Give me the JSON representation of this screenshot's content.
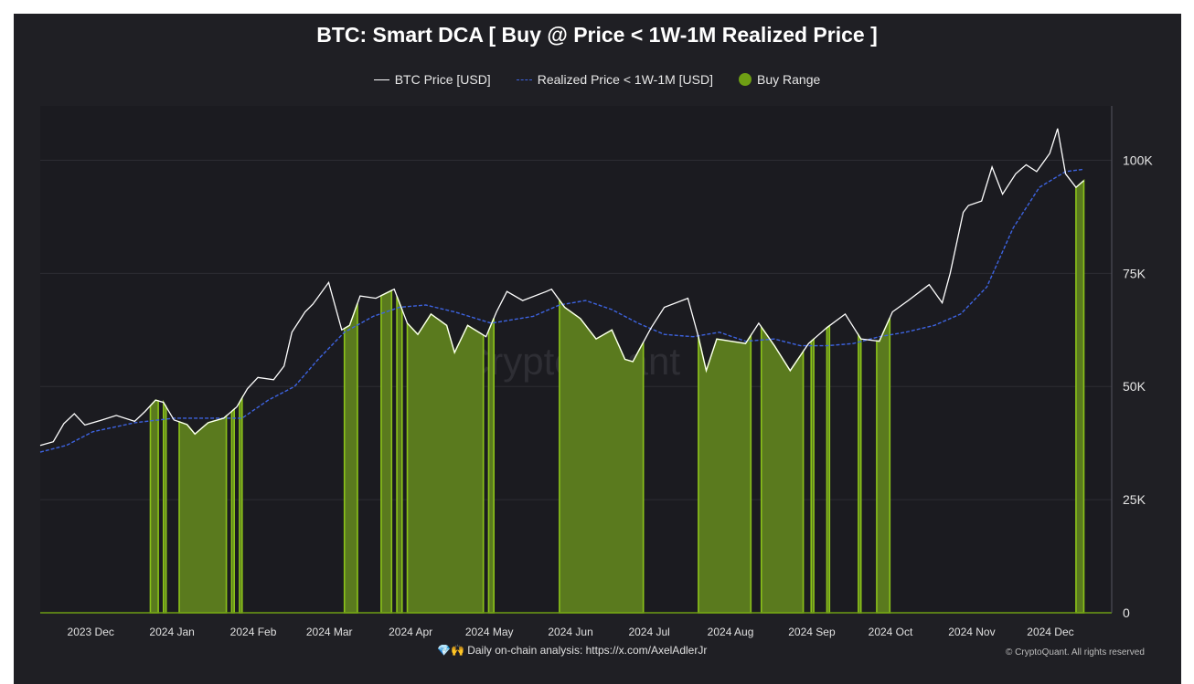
{
  "title": "BTC: Smart DCA [ Buy @ Price < 1W-1M Realized Price ]",
  "legend": {
    "btc_price": "BTC Price [USD]",
    "realized_price": "Realized Price < 1W-1M [USD]",
    "buy_range": "Buy Range"
  },
  "watermark": "CryptoQuant",
  "footer": {
    "analysis": "💎🙌 Daily on-chain analysis: https://x.com/AxelAdlerJr",
    "copyright": "© CryptoQuant. All rights reserved"
  },
  "colors": {
    "background": "#1f1f24",
    "price_line": "#ffffff",
    "realized_line": "#3d63e0",
    "buy_fill": "#5a7a1e",
    "buy_edge": "#8bc21a",
    "grid": "#2c2c33"
  },
  "chart_data": {
    "type": "line",
    "title": "BTC: Smart DCA [ Buy @ Price < 1W-1M Realized Price ]",
    "x_range": [
      "2023-11-25",
      "2024-12-31"
    ],
    "ylim": [
      0,
      112000
    ],
    "y_ticks": [
      0,
      25000,
      50000,
      75000,
      100000
    ],
    "y_tick_labels": [
      "0",
      "25K",
      "50K",
      "75K",
      "100K"
    ],
    "x_ticks": [
      {
        "date": "2023-12-01",
        "label": "2023 Dec"
      },
      {
        "date": "2024-01-01",
        "label": "2024 Jan"
      },
      {
        "date": "2024-02-01",
        "label": "2024 Feb"
      },
      {
        "date": "2024-03-01",
        "label": "2024 Mar"
      },
      {
        "date": "2024-04-01",
        "label": "2024 Apr"
      },
      {
        "date": "2024-05-01",
        "label": "2024 May"
      },
      {
        "date": "2024-06-01",
        "label": "2024 Jun"
      },
      {
        "date": "2024-07-01",
        "label": "2024 Jul"
      },
      {
        "date": "2024-08-01",
        "label": "2024 Aug"
      },
      {
        "date": "2024-09-01",
        "label": "2024 Sep"
      },
      {
        "date": "2024-10-01",
        "label": "2024 Oct"
      },
      {
        "date": "2024-11-01",
        "label": "2024 Nov"
      },
      {
        "date": "2024-12-01",
        "label": "2024 Dec"
      }
    ],
    "series": [
      {
        "name": "BTC Price [USD]",
        "style": "solid",
        "points": [
          [
            "2023-11-25",
            37000
          ],
          [
            "2023-11-30",
            37800
          ],
          [
            "2023-12-04",
            41800
          ],
          [
            "2023-12-08",
            44000
          ],
          [
            "2023-12-12",
            41500
          ],
          [
            "2023-12-18",
            42500
          ],
          [
            "2023-12-24",
            43600
          ],
          [
            "2023-12-31",
            42300
          ],
          [
            "2024-01-04",
            44500
          ],
          [
            "2024-01-08",
            47000
          ],
          [
            "2024-01-11",
            46500
          ],
          [
            "2024-01-15",
            42600
          ],
          [
            "2024-01-20",
            41600
          ],
          [
            "2024-01-23",
            39500
          ],
          [
            "2024-01-28",
            42000
          ],
          [
            "2024-02-03",
            43000
          ],
          [
            "2024-02-08",
            45500
          ],
          [
            "2024-02-12",
            49500
          ],
          [
            "2024-02-16",
            52000
          ],
          [
            "2024-02-22",
            51500
          ],
          [
            "2024-02-26",
            54500
          ],
          [
            "2024-02-29",
            62000
          ],
          [
            "2024-03-05",
            66500
          ],
          [
            "2024-03-08",
            68200
          ],
          [
            "2024-03-14",
            73000
          ],
          [
            "2024-03-19",
            62500
          ],
          [
            "2024-03-22",
            63500
          ],
          [
            "2024-03-26",
            70000
          ],
          [
            "2024-04-01",
            69500
          ],
          [
            "2024-04-08",
            71500
          ],
          [
            "2024-04-13",
            64000
          ],
          [
            "2024-04-17",
            61500
          ],
          [
            "2024-04-22",
            66000
          ],
          [
            "2024-04-28",
            63500
          ],
          [
            "2024-05-01",
            57500
          ],
          [
            "2024-05-06",
            63500
          ],
          [
            "2024-05-13",
            61000
          ],
          [
            "2024-05-17",
            66500
          ],
          [
            "2024-05-21",
            71000
          ],
          [
            "2024-05-27",
            69000
          ],
          [
            "2024-06-05",
            71000
          ],
          [
            "2024-06-07",
            71500
          ],
          [
            "2024-06-12",
            67500
          ],
          [
            "2024-06-18",
            65000
          ],
          [
            "2024-06-24",
            60500
          ],
          [
            "2024-06-30",
            62500
          ],
          [
            "2024-07-05",
            56000
          ],
          [
            "2024-07-08",
            55500
          ],
          [
            "2024-07-15",
            63000
          ],
          [
            "2024-07-20",
            67500
          ],
          [
            "2024-07-29",
            69500
          ],
          [
            "2024-08-02",
            61000
          ],
          [
            "2024-08-05",
            53500
          ],
          [
            "2024-08-09",
            60500
          ],
          [
            "2024-08-20",
            59500
          ],
          [
            "2024-08-25",
            64000
          ],
          [
            "2024-08-31",
            59000
          ],
          [
            "2024-09-06",
            53500
          ],
          [
            "2024-09-13",
            59500
          ],
          [
            "2024-09-20",
            63000
          ],
          [
            "2024-09-27",
            66000
          ],
          [
            "2024-10-03",
            60500
          ],
          [
            "2024-10-10",
            60000
          ],
          [
            "2024-10-15",
            66500
          ],
          [
            "2024-10-21",
            69000
          ],
          [
            "2024-10-29",
            72500
          ],
          [
            "2024-11-03",
            68500
          ],
          [
            "2024-11-06",
            75000
          ],
          [
            "2024-11-11",
            88500
          ],
          [
            "2024-11-13",
            90000
          ],
          [
            "2024-11-18",
            91000
          ],
          [
            "2024-11-22",
            98500
          ],
          [
            "2024-11-26",
            92500
          ],
          [
            "2024-12-01",
            97000
          ],
          [
            "2024-12-05",
            99000
          ],
          [
            "2024-12-09",
            97500
          ],
          [
            "2024-12-14",
            101500
          ],
          [
            "2024-12-17",
            107000
          ],
          [
            "2024-12-20",
            97000
          ],
          [
            "2024-12-24",
            94000
          ],
          [
            "2024-12-27",
            95500
          ]
        ]
      },
      {
        "name": "Realized Price < 1W-1M [USD]",
        "style": "dashed",
        "points": [
          [
            "2023-11-25",
            35500
          ],
          [
            "2023-12-05",
            37000
          ],
          [
            "2023-12-15",
            40000
          ],
          [
            "2023-12-31",
            42000
          ],
          [
            "2024-01-15",
            43000
          ],
          [
            "2024-01-31",
            43000
          ],
          [
            "2024-02-10",
            43000
          ],
          [
            "2024-02-20",
            47000
          ],
          [
            "2024-03-01",
            50000
          ],
          [
            "2024-03-10",
            56000
          ],
          [
            "2024-03-20",
            62000
          ],
          [
            "2024-03-31",
            65500
          ],
          [
            "2024-04-10",
            67500
          ],
          [
            "2024-04-20",
            68000
          ],
          [
            "2024-05-01",
            66500
          ],
          [
            "2024-05-15",
            64000
          ],
          [
            "2024-05-31",
            65500
          ],
          [
            "2024-06-10",
            68000
          ],
          [
            "2024-06-20",
            69000
          ],
          [
            "2024-06-30",
            67000
          ],
          [
            "2024-07-10",
            64000
          ],
          [
            "2024-07-20",
            61500
          ],
          [
            "2024-07-31",
            61000
          ],
          [
            "2024-08-10",
            62000
          ],
          [
            "2024-08-20",
            60000
          ],
          [
            "2024-08-31",
            60500
          ],
          [
            "2024-09-10",
            59000
          ],
          [
            "2024-09-20",
            59000
          ],
          [
            "2024-09-30",
            59500
          ],
          [
            "2024-10-10",
            61000
          ],
          [
            "2024-10-20",
            62000
          ],
          [
            "2024-10-31",
            63500
          ],
          [
            "2024-11-10",
            66000
          ],
          [
            "2024-11-20",
            72000
          ],
          [
            "2024-11-30",
            85000
          ],
          [
            "2024-12-10",
            94000
          ],
          [
            "2024-12-20",
            97500
          ],
          [
            "2024-12-27",
            98000
          ]
        ]
      }
    ],
    "buy_ranges": [
      [
        "2024-01-06",
        "2024-01-09"
      ],
      [
        "2024-01-11",
        "2024-01-12"
      ],
      [
        "2024-01-17",
        "2024-02-04"
      ],
      [
        "2024-02-06",
        "2024-02-07"
      ],
      [
        "2024-02-09",
        "2024-02-10"
      ],
      [
        "2024-03-20",
        "2024-03-25"
      ],
      [
        "2024-04-03",
        "2024-04-07"
      ],
      [
        "2024-04-09",
        "2024-04-11"
      ],
      [
        "2024-04-13",
        "2024-05-12"
      ],
      [
        "2024-05-14",
        "2024-05-16"
      ],
      [
        "2024-06-10",
        "2024-07-12"
      ],
      [
        "2024-08-02",
        "2024-08-22"
      ],
      [
        "2024-08-26",
        "2024-09-11"
      ],
      [
        "2024-09-14",
        "2024-09-15"
      ],
      [
        "2024-09-20",
        "2024-09-21"
      ],
      [
        "2024-10-02",
        "2024-10-03"
      ],
      [
        "2024-10-09",
        "2024-10-14"
      ],
      [
        "2024-12-24",
        "2024-12-27"
      ]
    ]
  }
}
